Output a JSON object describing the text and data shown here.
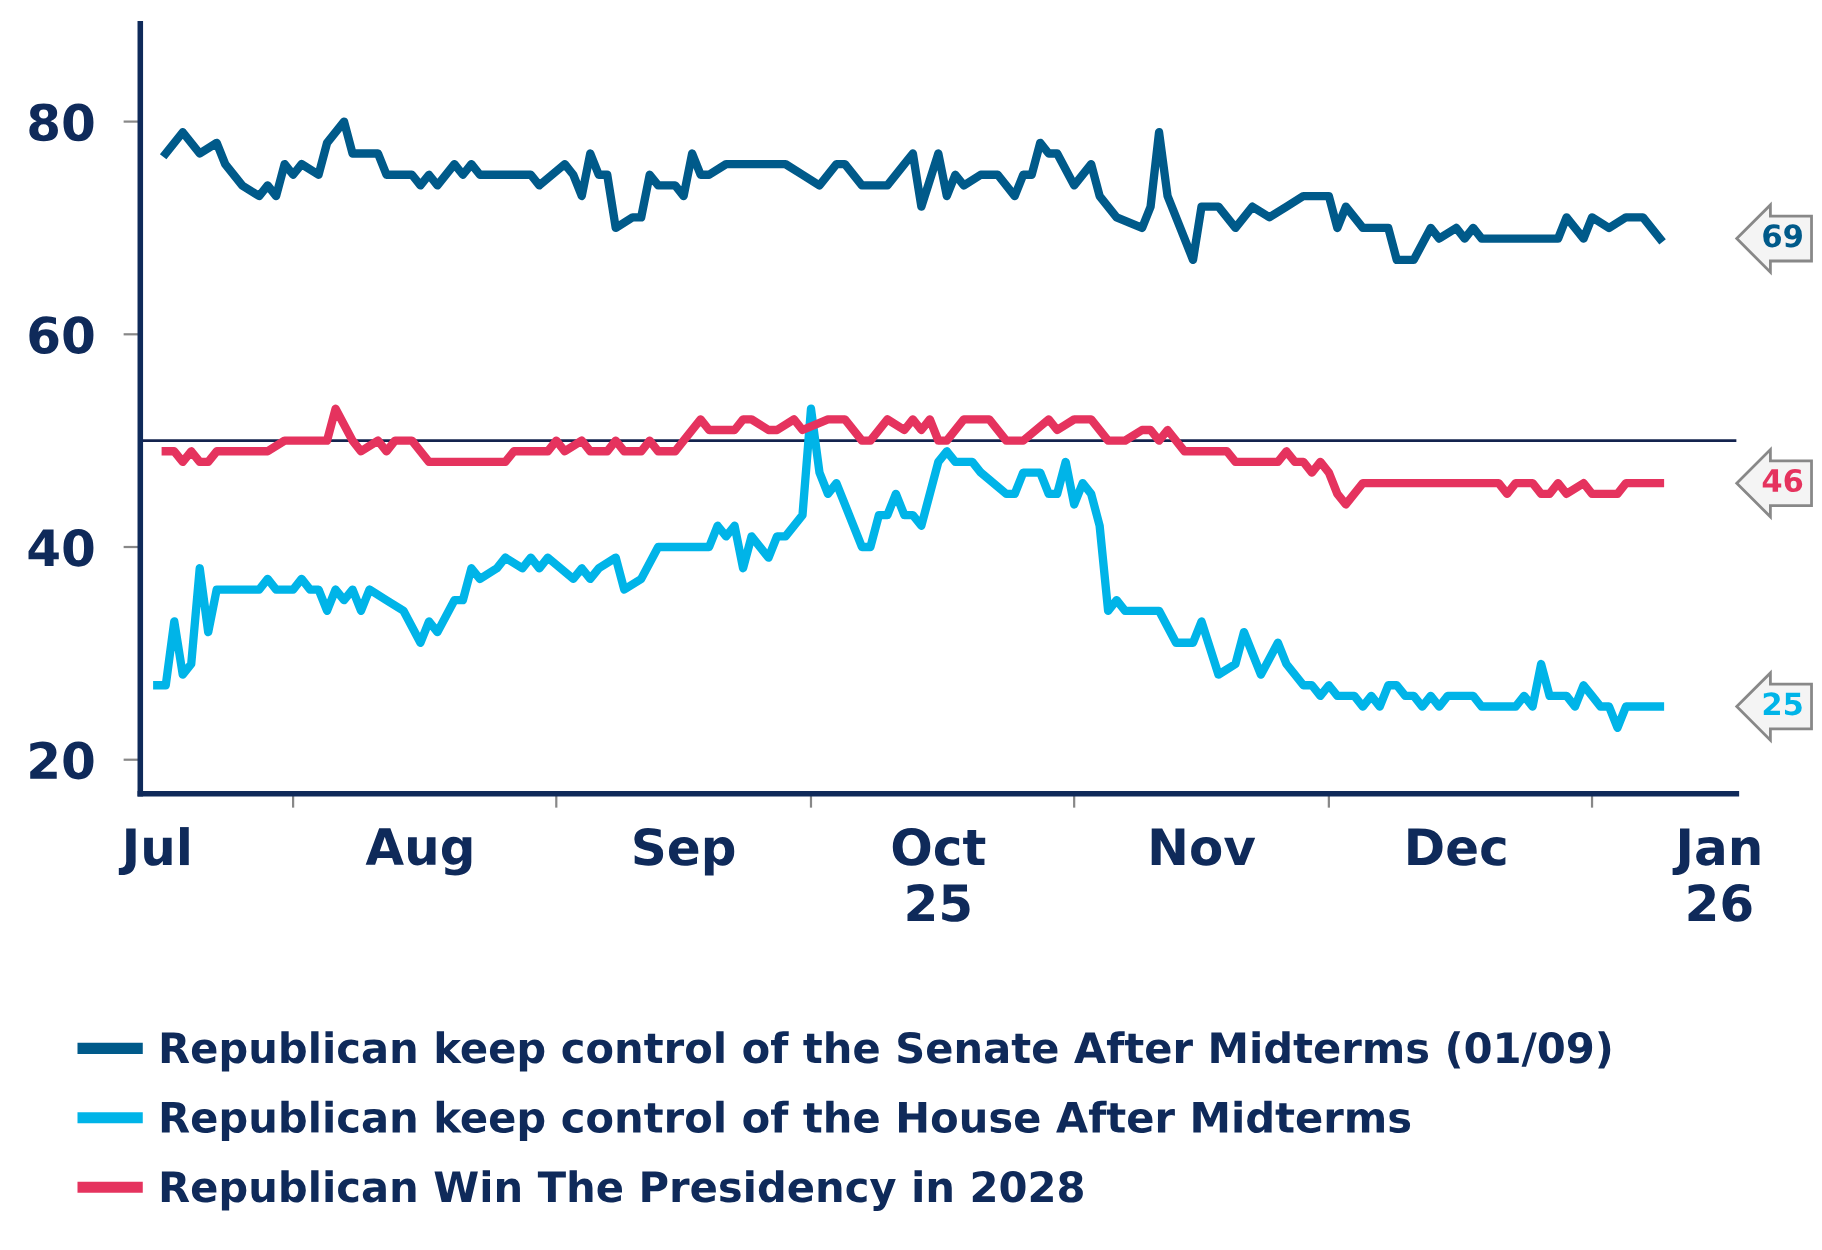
{
  "chart_data": {
    "type": "line",
    "xlim": [
      "2025-07-14",
      "2026-01-18"
    ],
    "xticks": [
      {
        "value": "2025-08-01",
        "label": null
      },
      {
        "value": "2025-09-01",
        "label": null
      },
      {
        "value": "2025-10-01",
        "label": null
      },
      {
        "value": "2025-11-01",
        "label": null
      },
      {
        "value": "2025-12-01",
        "label": null
      },
      {
        "value": "2026-01-01",
        "label": null
      },
      {
        "value": "2025-07-16",
        "label": "Jul"
      },
      {
        "value": "2025-08-16",
        "label": "Aug"
      },
      {
        "value": "2025-09-16",
        "label": "Sep"
      },
      {
        "value": "2025-10-16",
        "label": "Oct\n25"
      },
      {
        "value": "2025-11-16",
        "label": "Nov"
      },
      {
        "value": "2025-12-16",
        "label": "Dec"
      },
      {
        "value": "2026-01-16",
        "label": "Jan\n26"
      }
    ],
    "ylim": [
      16.8,
      89.2
    ],
    "yticks": [
      20,
      40,
      60,
      80
    ],
    "grid": false,
    "legend": "bottom",
    "marker": "none",
    "line_style": "solid",
    "ref_lines": [
      {
        "axis": "y",
        "value": 50,
        "color": "#14244f"
      }
    ],
    "annotations": [
      "69",
      "25",
      "46"
    ],
    "series": [
      {
        "name": "Republican keep control of the Senate After Midterms (01/09)",
        "color": "#005a8a",
        "x": [
          "2025-07-17",
          "2025-07-19",
          "2025-07-21",
          "2025-07-23",
          "2025-07-24",
          "2025-07-26",
          "2025-07-28",
          "2025-07-29",
          "2025-07-30",
          "2025-07-31",
          "2025-08-01",
          "2025-08-02",
          "2025-08-04",
          "2025-08-05",
          "2025-08-07",
          "2025-08-08",
          "2025-08-11",
          "2025-08-12",
          "2025-08-15",
          "2025-08-16",
          "2025-08-17",
          "2025-08-18",
          "2025-08-20",
          "2025-08-21",
          "2025-08-22",
          "2025-08-23",
          "2025-08-29",
          "2025-08-30",
          "2025-09-02",
          "2025-09-03",
          "2025-09-04",
          "2025-09-05",
          "2025-09-06",
          "2025-09-07",
          "2025-09-08",
          "2025-09-10",
          "2025-09-11",
          "2025-09-12",
          "2025-09-13",
          "2025-09-15",
          "2025-09-16",
          "2025-09-17",
          "2025-09-18",
          "2025-09-19",
          "2025-09-21",
          "2025-09-28",
          "2025-09-30",
          "2025-10-02",
          "2025-10-04",
          "2025-10-05",
          "2025-10-07",
          "2025-10-10",
          "2025-10-12",
          "2025-10-13",
          "2025-10-14",
          "2025-10-16",
          "2025-10-17",
          "2025-10-18",
          "2025-10-19",
          "2025-10-21",
          "2025-10-23",
          "2025-10-25",
          "2025-10-26",
          "2025-10-27",
          "2025-10-28",
          "2025-10-29",
          "2025-10-30",
          "2025-11-01",
          "2025-11-03",
          "2025-11-04",
          "2025-11-06",
          "2025-11-09",
          "2025-11-10",
          "2025-11-11",
          "2025-11-12",
          "2025-11-15",
          "2025-11-16",
          "2025-11-18",
          "2025-11-20",
          "2025-11-22",
          "2025-11-24",
          "2025-11-26",
          "2025-11-28",
          "2025-12-01",
          "2025-12-02",
          "2025-12-03",
          "2025-12-05",
          "2025-12-08",
          "2025-12-09",
          "2025-12-11",
          "2025-12-13",
          "2025-12-14",
          "2025-12-16",
          "2025-12-17",
          "2025-12-18",
          "2025-12-19",
          "2025-12-28",
          "2025-12-29",
          "2025-12-31",
          "2026-01-01",
          "2026-01-03",
          "2026-01-05",
          "2026-01-07",
          "2026-01-09"
        ],
        "values": [
          77,
          79,
          77,
          78,
          76,
          74,
          73,
          74,
          73,
          76,
          75,
          76,
          75,
          78,
          80,
          77,
          77,
          75,
          75,
          74,
          75,
          74,
          76,
          75,
          76,
          75,
          75,
          74,
          76,
          75,
          73,
          77,
          75,
          75,
          70,
          71,
          71,
          75,
          74,
          74,
          73,
          77,
          75,
          75,
          76,
          76,
          75,
          74,
          76,
          76,
          74,
          74,
          76,
          77,
          72,
          77,
          73,
          75,
          74,
          75,
          75,
          73,
          75,
          75,
          78,
          77,
          77,
          74,
          76,
          73,
          71,
          70,
          72,
          79,
          73,
          67,
          72,
          72,
          70,
          72,
          71,
          72,
          73,
          73,
          70,
          72,
          70,
          70,
          67,
          67,
          70,
          69,
          70,
          69,
          70,
          69,
          69,
          71,
          69,
          71,
          70,
          71,
          71,
          69
        ]
      },
      {
        "name": "Republican keep control of the House After Midterms",
        "color": "#00b4e8",
        "x": [
          "2025-07-16",
          "2025-07-17",
          "2025-07-18",
          "2025-07-19",
          "2025-07-20",
          "2025-07-21",
          "2025-07-22",
          "2025-07-23",
          "2025-07-28",
          "2025-07-29",
          "2025-07-30",
          "2025-08-01",
          "2025-08-02",
          "2025-08-03",
          "2025-08-04",
          "2025-08-05",
          "2025-08-06",
          "2025-08-07",
          "2025-08-08",
          "2025-08-09",
          "2025-08-10",
          "2025-08-12",
          "2025-08-14",
          "2025-08-16",
          "2025-08-17",
          "2025-08-18",
          "2025-08-20",
          "2025-08-21",
          "2025-08-22",
          "2025-08-23",
          "2025-08-25",
          "2025-08-26",
          "2025-08-28",
          "2025-08-29",
          "2025-08-30",
          "2025-08-31",
          "2025-09-03",
          "2025-09-04",
          "2025-09-05",
          "2025-09-06",
          "2025-09-08",
          "2025-09-09",
          "2025-09-11",
          "2025-09-13",
          "2025-09-16",
          "2025-09-19",
          "2025-09-20",
          "2025-09-21",
          "2025-09-22",
          "2025-09-23",
          "2025-09-24",
          "2025-09-26",
          "2025-09-27",
          "2025-09-28",
          "2025-09-30",
          "2025-10-01",
          "2025-10-02",
          "2025-10-03",
          "2025-10-04",
          "2025-10-07",
          "2025-10-08",
          "2025-10-09",
          "2025-10-10",
          "2025-10-11",
          "2025-10-12",
          "2025-10-13",
          "2025-10-14",
          "2025-10-16",
          "2025-10-17",
          "2025-10-18",
          "2025-10-20",
          "2025-10-21",
          "2025-10-24",
          "2025-10-25",
          "2025-10-26",
          "2025-10-28",
          "2025-10-29",
          "2025-10-30",
          "2025-10-31",
          "2025-11-01",
          "2025-11-02",
          "2025-11-03",
          "2025-11-04",
          "2025-11-05",
          "2025-11-06",
          "2025-11-07",
          "2025-11-11",
          "2025-11-13",
          "2025-11-15",
          "2025-11-16",
          "2025-11-18",
          "2025-11-20",
          "2025-11-21",
          "2025-11-23",
          "2025-11-25",
          "2025-11-26",
          "2025-11-28",
          "2025-11-29",
          "2025-11-30",
          "2025-12-01",
          "2025-12-02",
          "2025-12-04",
          "2025-12-05",
          "2025-12-06",
          "2025-12-07",
          "2025-12-08",
          "2025-12-09",
          "2025-12-10",
          "2025-12-11",
          "2025-12-12",
          "2025-12-13",
          "2025-12-14",
          "2025-12-15",
          "2025-12-18",
          "2025-12-19",
          "2025-12-23",
          "2025-12-24",
          "2025-12-25",
          "2025-12-26",
          "2025-12-27",
          "2025-12-29",
          "2025-12-30",
          "2025-12-31",
          "2026-01-01",
          "2026-01-02",
          "2026-01-03",
          "2026-01-04",
          "2026-01-05",
          "2026-01-09"
        ],
        "values": [
          27,
          27,
          33,
          28,
          29,
          38,
          32,
          36,
          36,
          37,
          36,
          36,
          37,
          36,
          36,
          34,
          36,
          35,
          36,
          34,
          36,
          35,
          34,
          31,
          33,
          32,
          35,
          35,
          38,
          37,
          38,
          39,
          38,
          39,
          38,
          39,
          37,
          38,
          37,
          38,
          39,
          36,
          37,
          40,
          40,
          40,
          42,
          41,
          42,
          38,
          41,
          39,
          41,
          41,
          43,
          53,
          47,
          45,
          46,
          40,
          40,
          43,
          43,
          45,
          43,
          43,
          42,
          48,
          49,
          48,
          48,
          47,
          45,
          45,
          47,
          47,
          45,
          45,
          48,
          44,
          46,
          45,
          42,
          34,
          35,
          34,
          34,
          31,
          31,
          33,
          28,
          29,
          32,
          28,
          31,
          29,
          27,
          27,
          26,
          27,
          26,
          26,
          25,
          26,
          25,
          27,
          27,
          26,
          26,
          25,
          26,
          25,
          26,
          26,
          25,
          25,
          26,
          25,
          29,
          26,
          26,
          25,
          27,
          26,
          25,
          25,
          23,
          25,
          25
        ]
      },
      {
        "name": "Republican Win The Presidency in 2028",
        "color": "#e5335e",
        "x": [
          "2025-07-17",
          "2025-07-18",
          "2025-07-19",
          "2025-07-20",
          "2025-07-21",
          "2025-07-22",
          "2025-07-23",
          "2025-07-29",
          "2025-07-31",
          "2025-08-05",
          "2025-08-06",
          "2025-08-08",
          "2025-08-09",
          "2025-08-11",
          "2025-08-12",
          "2025-08-13",
          "2025-08-15",
          "2025-08-17",
          "2025-08-26",
          "2025-08-27",
          "2025-08-31",
          "2025-09-01",
          "2025-09-02",
          "2025-09-04",
          "2025-09-05",
          "2025-09-07",
          "2025-09-08",
          "2025-09-09",
          "2025-09-11",
          "2025-09-12",
          "2025-09-13",
          "2025-09-15",
          "2025-09-16",
          "2025-09-18",
          "2025-09-19",
          "2025-09-22",
          "2025-09-23",
          "2025-09-24",
          "2025-09-26",
          "2025-09-27",
          "2025-09-29",
          "2025-09-30",
          "2025-10-03",
          "2025-10-05",
          "2025-10-07",
          "2025-10-08",
          "2025-10-10",
          "2025-10-12",
          "2025-10-13",
          "2025-10-14",
          "2025-10-15",
          "2025-10-16",
          "2025-10-17",
          "2025-10-19",
          "2025-10-22",
          "2025-10-24",
          "2025-10-26",
          "2025-10-29",
          "2025-10-30",
          "2025-11-01",
          "2025-11-03",
          "2025-11-05",
          "2025-11-07",
          "2025-11-09",
          "2025-11-10",
          "2025-11-11",
          "2025-11-12",
          "2025-11-14",
          "2025-11-16",
          "2025-11-19",
          "2025-11-20",
          "2025-11-25",
          "2025-11-26",
          "2025-11-27",
          "2025-11-28",
          "2025-11-29",
          "2025-11-30",
          "2025-12-01",
          "2025-12-02",
          "2025-12-03",
          "2025-12-05",
          "2025-12-21",
          "2025-12-22",
          "2025-12-23",
          "2025-12-25",
          "2025-12-26",
          "2025-12-27",
          "2025-12-28",
          "2025-12-29",
          "2025-12-31",
          "2026-01-01",
          "2026-01-04",
          "2026-01-05",
          "2026-01-09"
        ],
        "values": [
          49,
          49,
          48,
          49,
          48,
          48,
          49,
          49,
          50,
          50,
          53,
          50,
          49,
          50,
          49,
          50,
          50,
          48,
          48,
          49,
          49,
          50,
          49,
          50,
          49,
          49,
          50,
          49,
          49,
          50,
          49,
          49,
          50,
          52,
          51,
          51,
          52,
          52,
          51,
          51,
          52,
          51,
          52,
          52,
          50,
          50,
          52,
          51,
          52,
          51,
          52,
          50,
          50,
          52,
          52,
          50,
          50,
          52,
          51,
          52,
          52,
          50,
          50,
          51,
          51,
          50,
          51,
          49,
          49,
          49,
          48,
          48,
          49,
          48,
          48,
          47,
          48,
          47,
          45,
          44,
          46,
          46,
          45,
          46,
          46,
          45,
          45,
          46,
          45,
          46,
          45,
          45,
          46,
          46
        ]
      }
    ]
  }
}
